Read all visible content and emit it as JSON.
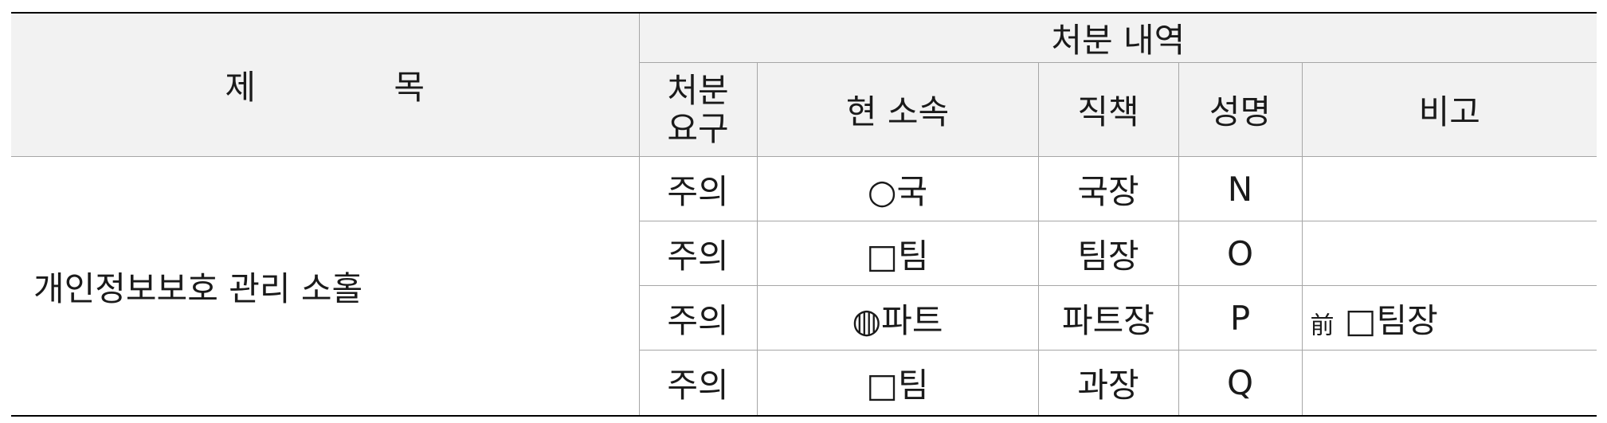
{
  "header": {
    "title_col": "제 목",
    "group": "처분 내역",
    "cols": {
      "action": "처분\n요구",
      "affiliation": "현 소속",
      "position": "직책",
      "name": "성명",
      "remarks": "비고"
    }
  },
  "title": "개인정보보호 관리 소홀",
  "rows": [
    {
      "action": "주의",
      "affiliation": "○국",
      "position": "국장",
      "name": "N",
      "remarks_prefix": "",
      "remarks": ""
    },
    {
      "action": "주의",
      "affiliation": "□팀",
      "position": "팀장",
      "name": "O",
      "remarks_prefix": "",
      "remarks": ""
    },
    {
      "action": "주의",
      "affiliation": "◍파트",
      "position": "파트장",
      "name": "P",
      "remarks_prefix": "前",
      "remarks": "□팀장"
    },
    {
      "action": "주의",
      "affiliation": "□팀",
      "position": "과장",
      "name": "Q",
      "remarks_prefix": "",
      "remarks": ""
    }
  ]
}
